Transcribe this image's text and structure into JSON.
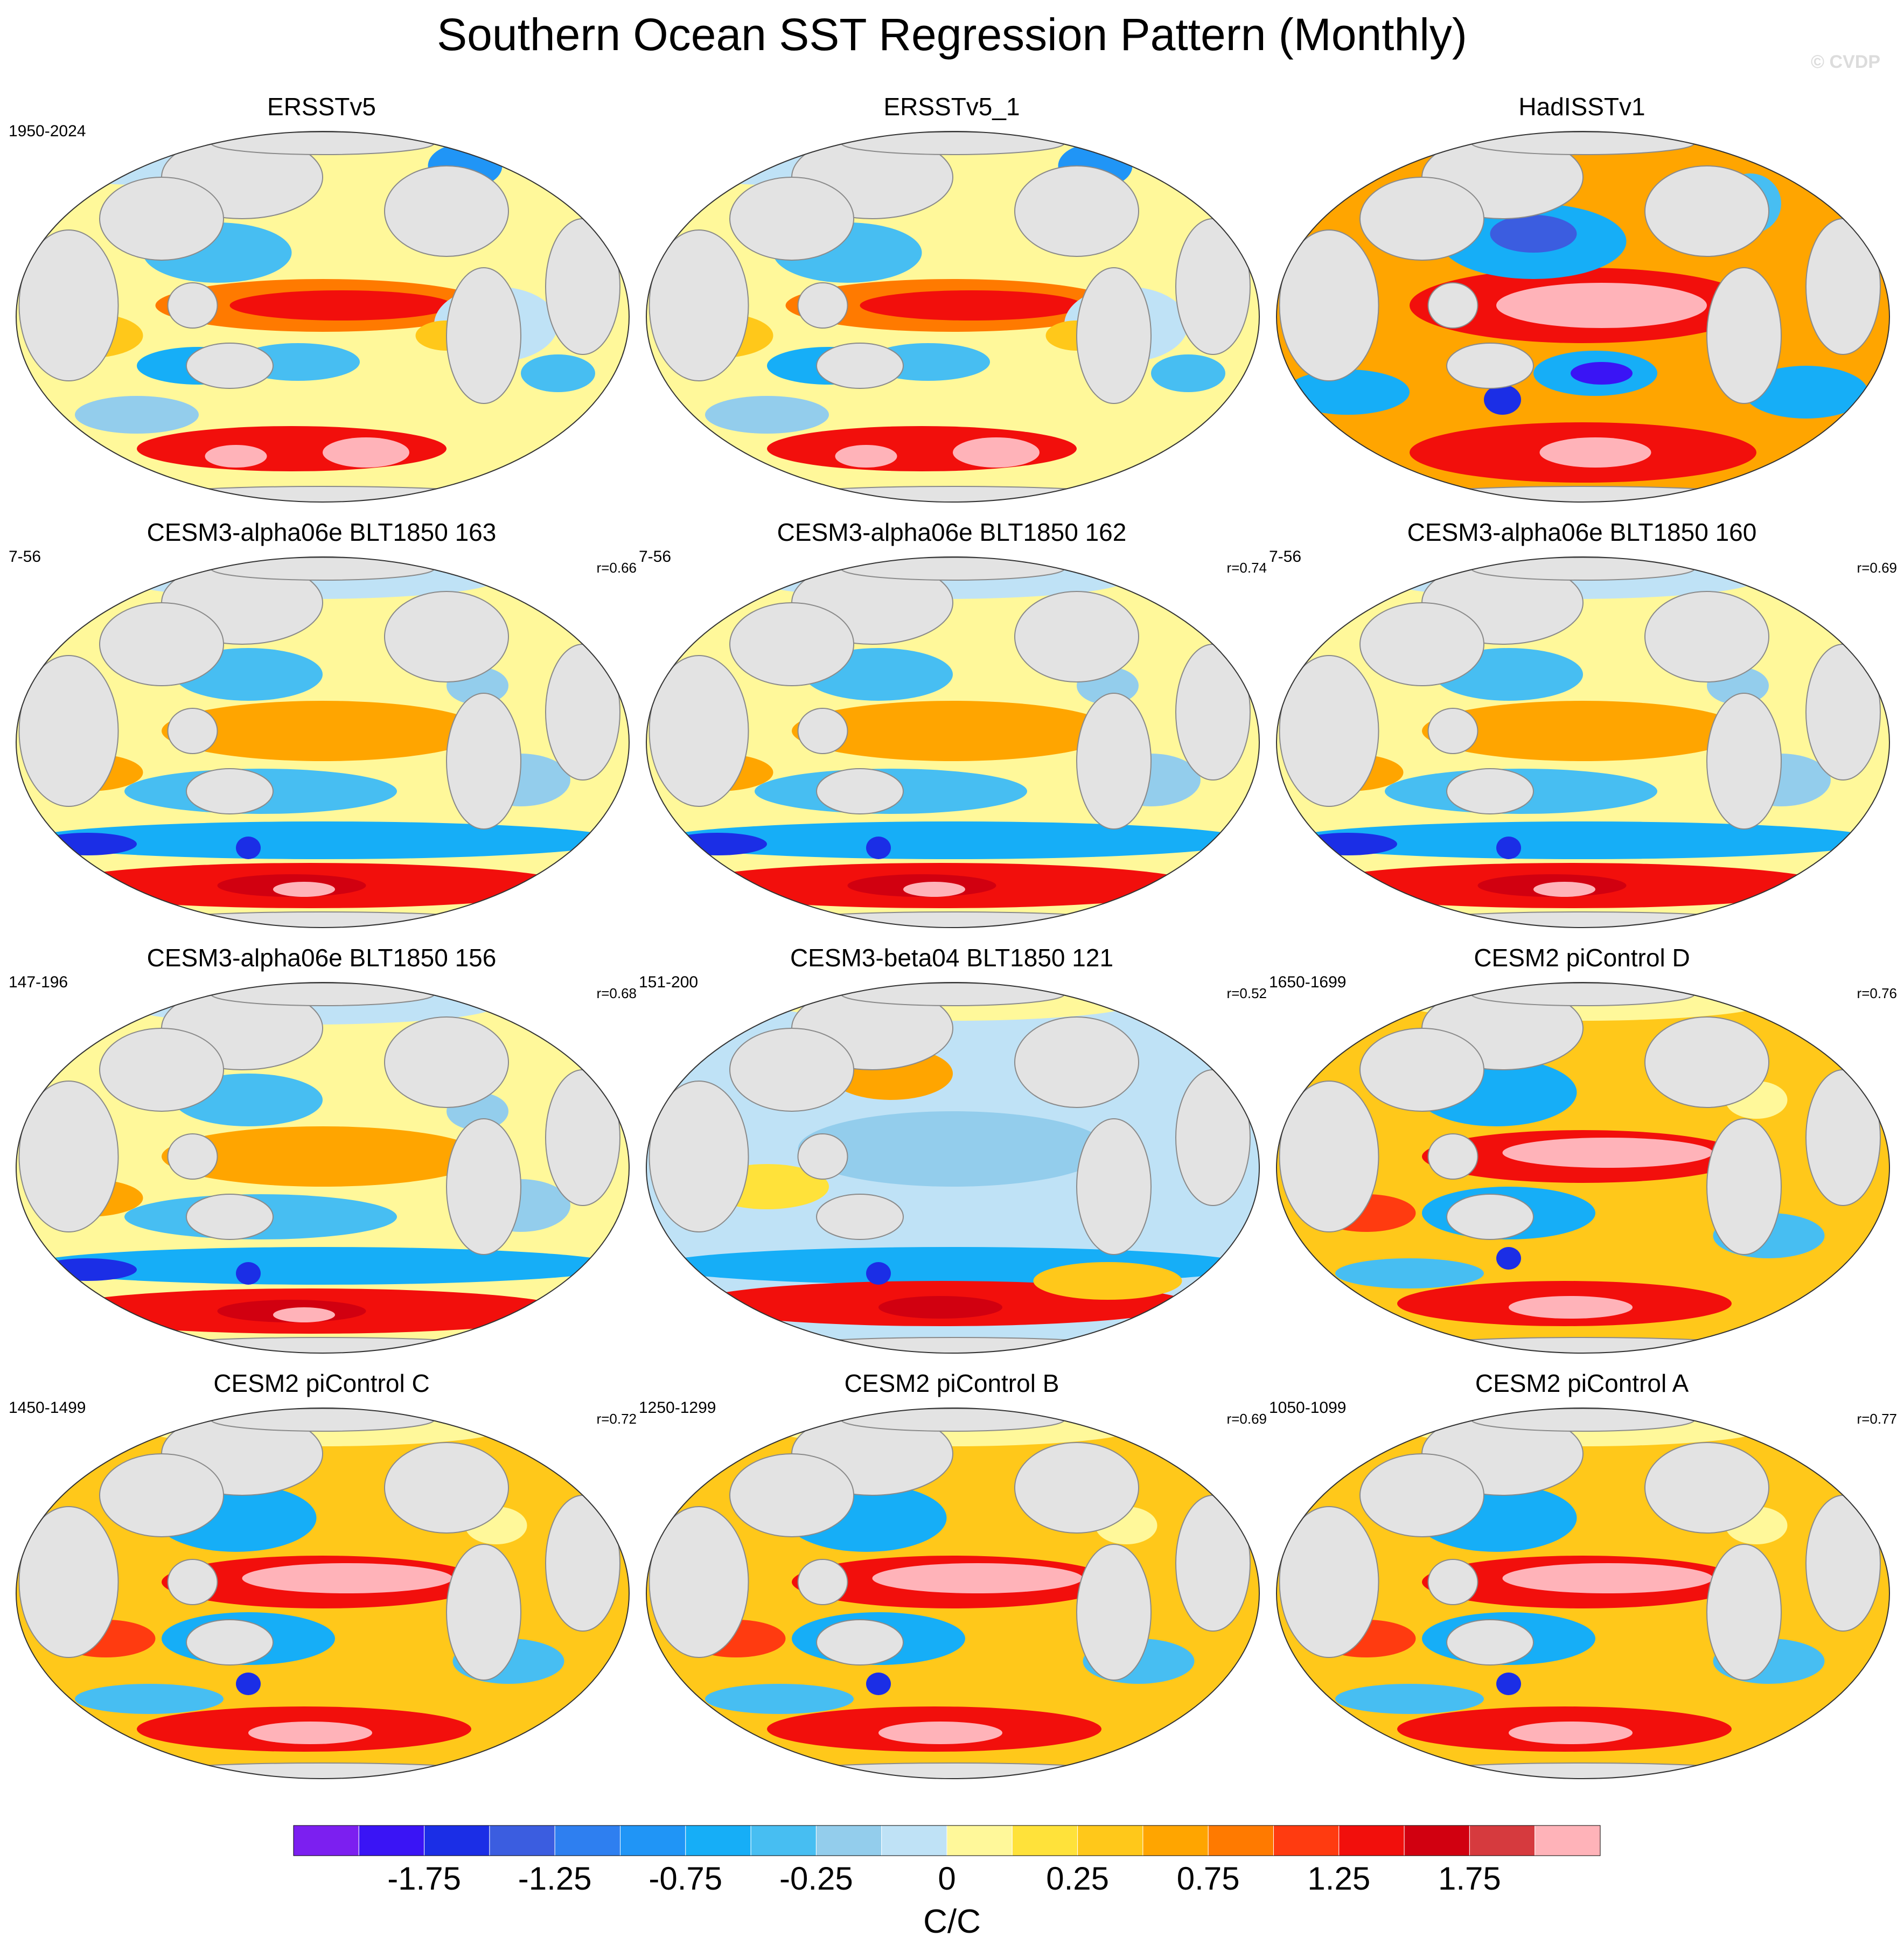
{
  "title": "Southern Ocean SST Regression Pattern (Monthly)",
  "watermark": "© CVDP",
  "colors": {
    "land": "#e3e3e3",
    "background": "#ffffff"
  },
  "panels": [
    {
      "title": "ERSSTv5",
      "years": "1950-2024",
      "corr": "",
      "pattern": "obs"
    },
    {
      "title": "ERSSTv5_1",
      "years": "",
      "corr": "",
      "pattern": "obs"
    },
    {
      "title": "HadISSTv1",
      "years": "",
      "corr": "",
      "pattern": "had"
    },
    {
      "title": "CESM3-alpha06e BLT1850 163",
      "years": "7-56",
      "corr": "r=0.66",
      "pattern": "model"
    },
    {
      "title": "CESM3-alpha06e BLT1850 162",
      "years": "7-56",
      "corr": "r=0.74",
      "pattern": "model"
    },
    {
      "title": "CESM3-alpha06e BLT1850 160",
      "years": "7-56",
      "corr": "r=0.69",
      "pattern": "model"
    },
    {
      "title": "CESM3-alpha06e BLT1850 156",
      "years": "147-196",
      "corr": "r=0.68",
      "pattern": "model"
    },
    {
      "title": "CESM3-beta04 BLT1850 121",
      "years": "151-200",
      "corr": "r=0.52",
      "pattern": "weak"
    },
    {
      "title": "CESM2 piControl D",
      "years": "1650-1699",
      "corr": "r=0.76",
      "pattern": "cesm2"
    },
    {
      "title": "CESM2 piControl C",
      "years": "1450-1499",
      "corr": "r=0.72",
      "pattern": "cesm2"
    },
    {
      "title": "CESM2 piControl B",
      "years": "1250-1299",
      "corr": "r=0.69",
      "pattern": "cesm2"
    },
    {
      "title": "CESM2 piControl A",
      "years": "1050-1099",
      "corr": "r=0.77",
      "pattern": "cesm2"
    }
  ],
  "colorbar": {
    "colors": [
      "#7c1ff0",
      "#3a14f5",
      "#1b2ee6",
      "#3b5de0",
      "#2e7ff0",
      "#2095f6",
      "#16aef7",
      "#47bef2",
      "#93cdec",
      "#bfe2f6",
      "#fff89a",
      "#ffe23a",
      "#ffc81a",
      "#ffa500",
      "#ff7a00",
      "#ff3b10",
      "#f20f0c",
      "#d10010",
      "#d63a3e",
      "#ffb3b9"
    ],
    "labels": [
      {
        "text": "-1.75",
        "boundary": 2
      },
      {
        "text": "-1.25",
        "boundary": 4
      },
      {
        "text": "-0.75",
        "boundary": 6
      },
      {
        "text": "-0.25",
        "boundary": 8
      },
      {
        "text": "0",
        "boundary": 10
      },
      {
        "text": "0.25",
        "boundary": 12
      },
      {
        "text": "0.75",
        "boundary": 14
      },
      {
        "text": "1.25",
        "boundary": 16
      },
      {
        "text": "1.75",
        "boundary": 18
      }
    ],
    "units": "C/C"
  }
}
